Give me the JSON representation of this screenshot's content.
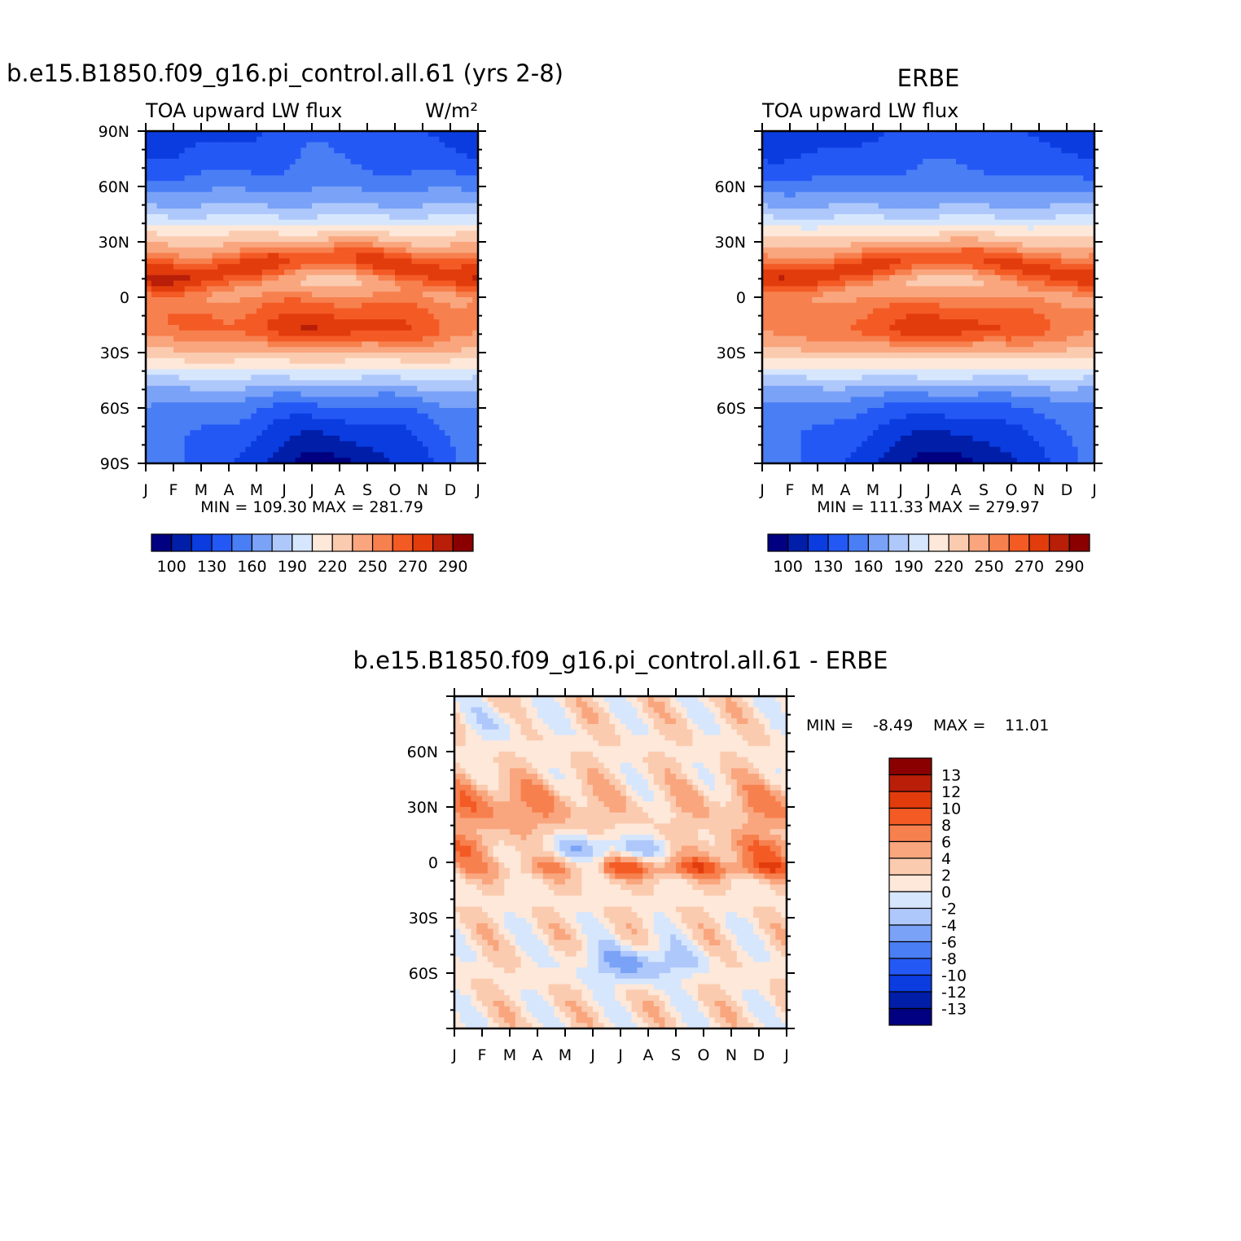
{
  "figure": {
    "top_left_title": "b.e15.B1850.f09_g16.pi_control.all.61 (yrs 2-8)",
    "top_right_title": "ERBE",
    "bottom_title": "b.e15.B1850.f09_g16.pi_control.all.61 - ERBE"
  },
  "chart_data": [
    {
      "type": "heatmap",
      "name": "model",
      "left_label": "TOA upward LW flux",
      "units": "W/m²",
      "stats": "MIN = 109.30 MAX = 281.79",
      "min": 109.3,
      "max": 281.79,
      "x_ticklabels": [
        "J",
        "F",
        "M",
        "A",
        "M",
        "J",
        "J",
        "A",
        "S",
        "O",
        "N",
        "D",
        "J"
      ],
      "y_ticks": [
        90,
        60,
        30,
        0,
        -30,
        -60,
        -90
      ],
      "y_ticklabels": [
        "90N",
        "60N",
        "30N",
        "0",
        "30S",
        "60S",
        "90S"
      ],
      "ylim": [
        -90,
        90
      ],
      "colorbar": {
        "levels": [
          100,
          115,
          130,
          145,
          160,
          175,
          190,
          205,
          220,
          235,
          250,
          260,
          270,
          280,
          290
        ],
        "labels": [
          "100",
          "130",
          "160",
          "190",
          "220",
          "250",
          "270",
          "290"
        ],
        "colors": [
          "#000080",
          "#001ea8",
          "#0a3ce0",
          "#2458f5",
          "#4a7ef5",
          "#7aa2f7",
          "#afc8fb",
          "#d6e6fd",
          "#fde8d9",
          "#fbcbb0",
          "#f9a67e",
          "#f7804f",
          "#f45a24",
          "#e23c0c",
          "#b81e08",
          "#8a0000"
        ]
      }
    },
    {
      "type": "heatmap",
      "name": "obs",
      "left_label": "TOA upward LW flux",
      "stats": "MIN = 111.33 MAX = 279.97",
      "min": 111.33,
      "max": 279.97,
      "x_ticklabels": [
        "J",
        "F",
        "M",
        "A",
        "M",
        "J",
        "J",
        "A",
        "S",
        "O",
        "N",
        "D",
        "J"
      ],
      "y_ticks": [
        60,
        30,
        0,
        -30,
        -60
      ],
      "y_ticklabels": [
        "60N",
        "30N",
        "0",
        "30S",
        "60S"
      ],
      "ylim": [
        -90,
        90
      ],
      "colorbar": {
        "levels": [
          100,
          115,
          130,
          145,
          160,
          175,
          190,
          205,
          220,
          235,
          250,
          260,
          270,
          280,
          290
        ],
        "labels": [
          "100",
          "130",
          "160",
          "190",
          "220",
          "250",
          "270",
          "290"
        ],
        "colors": [
          "#000080",
          "#001ea8",
          "#0a3ce0",
          "#2458f5",
          "#4a7ef5",
          "#7aa2f7",
          "#afc8fb",
          "#d6e6fd",
          "#fde8d9",
          "#fbcbb0",
          "#f9a67e",
          "#f7804f",
          "#f45a24",
          "#e23c0c",
          "#b81e08",
          "#8a0000"
        ]
      }
    },
    {
      "type": "heatmap",
      "name": "difference",
      "stats_label": "MIN =",
      "stats_min": "-8.49",
      "stats_max_label": "MAX =",
      "stats_max": "11.01",
      "min": -8.49,
      "max": 11.01,
      "x_ticklabels": [
        "J",
        "F",
        "M",
        "A",
        "M",
        "J",
        "J",
        "A",
        "S",
        "O",
        "N",
        "D",
        "J"
      ],
      "y_ticks": [
        60,
        30,
        0,
        -30,
        -60
      ],
      "y_ticklabels": [
        "60N",
        "30N",
        "0",
        "30S",
        "60S"
      ],
      "ylim": [
        -90,
        90
      ],
      "colorbar": {
        "labels": [
          "13",
          "12",
          "10",
          "8",
          "6",
          "4",
          "2",
          "0",
          "-2",
          "-4",
          "-6",
          "-8",
          "-10",
          "-12",
          "-13"
        ],
        "colors": [
          "#8a0000",
          "#b81e08",
          "#e23c0c",
          "#f45a24",
          "#f7804f",
          "#f9a67e",
          "#fbcbb0",
          "#fde8d9",
          "#d6e6fd",
          "#afc8fb",
          "#7aa2f7",
          "#4a7ef5",
          "#2458f5",
          "#0a3ce0",
          "#001ea8",
          "#000080"
        ]
      }
    }
  ]
}
